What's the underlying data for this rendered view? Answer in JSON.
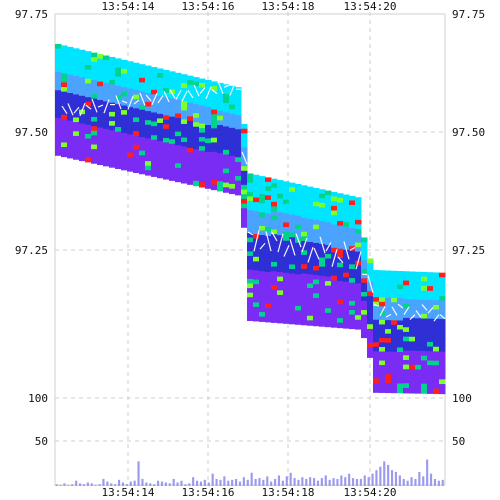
{
  "chart_data": [
    {
      "type": "heatmap",
      "x_ticks": [
        "13:54:14",
        "13:54:16",
        "13:54:18",
        "13:54:20"
      ],
      "y_ticks": [
        "97.75",
        "97.50",
        "97.25"
      ],
      "ylim": [
        97.0,
        97.75
      ],
      "grid": true,
      "colors": {
        "very_low": "#2f2fd6",
        "low": "#7a2cf4",
        "mid_low": "#4aa3ff",
        "mid": "#00e5ff",
        "mid_high": "#00d38b",
        "high": "#7cff2a",
        "very_high": "#ff1f1f",
        "price_line": "#ffffff"
      }
    },
    {
      "type": "bar",
      "x_ticks": [
        "13:54:14",
        "13:54:16",
        "13:54:18",
        "13:54:20"
      ],
      "y_ticks": [
        "100",
        "50"
      ],
      "ylim": [
        0,
        100
      ],
      "grid": true,
      "series": [
        {
          "values": [
            2,
            1,
            3,
            1,
            2,
            6,
            3,
            2,
            4,
            3,
            1,
            2,
            8,
            5,
            3,
            2,
            7,
            4,
            2,
            5,
            6,
            28,
            8,
            4,
            3,
            2,
            6,
            5,
            4,
            3,
            8,
            4,
            6,
            2,
            3,
            10,
            6,
            5,
            7,
            4,
            14,
            8,
            7,
            11,
            6,
            7,
            8,
            5,
            10,
            7,
            15,
            8,
            9,
            7,
            11,
            5,
            8,
            12,
            6,
            11,
            15,
            9,
            7,
            10,
            8,
            10,
            9,
            6,
            9,
            12,
            7,
            9,
            8,
            12,
            10,
            14,
            9,
            8,
            8,
            12,
            10,
            14,
            18,
            22,
            28,
            24,
            18,
            16,
            12,
            8,
            6,
            10,
            8,
            16,
            11,
            30,
            14,
            8,
            6,
            7
          ]
        }
      ],
      "colors": {
        "bars": "#9a9af0"
      }
    }
  ]
}
